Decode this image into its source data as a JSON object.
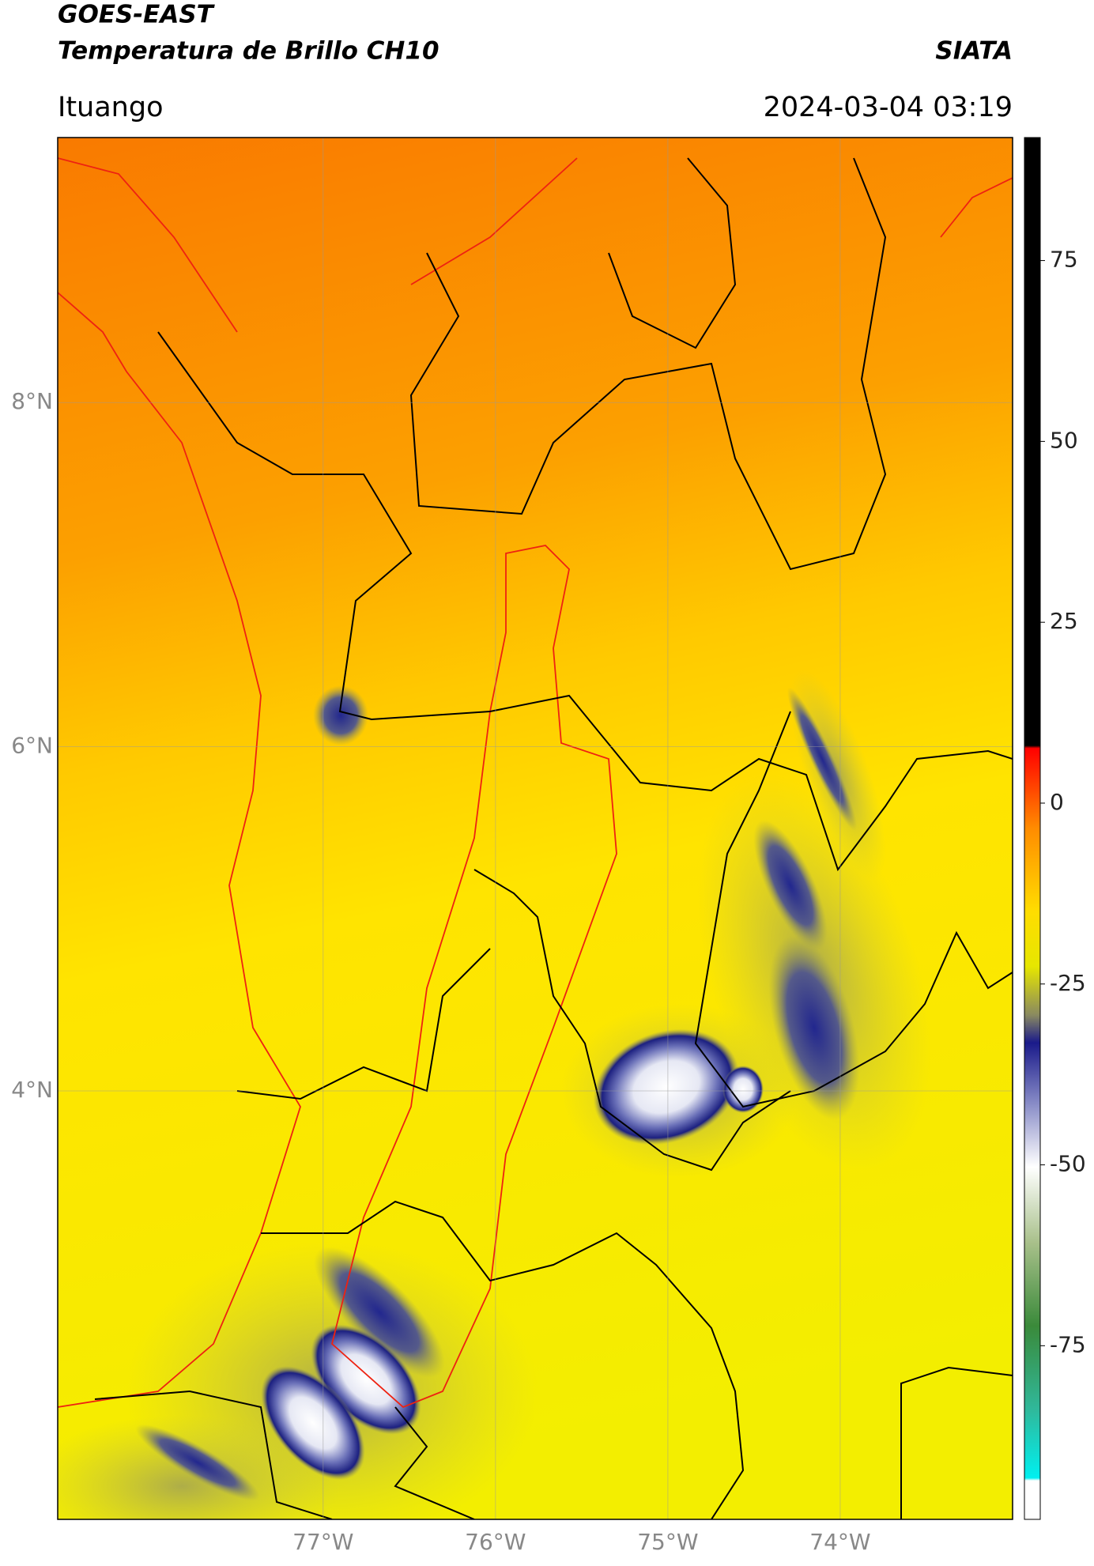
{
  "header": {
    "title": "GOES-EAST",
    "subtitle": "Temperatura de Brillo CH10",
    "source": "SIATA",
    "location": "Ituango",
    "datetime": "2024-03-04 03:19"
  },
  "map": {
    "xlim": [
      -78.54,
      -73.0
    ],
    "ylim": [
      1.51,
      9.54
    ],
    "xticks": [
      {
        "value": -77,
        "label": "77°W"
      },
      {
        "value": -76,
        "label": "76°W"
      },
      {
        "value": -75,
        "label": "75°W"
      },
      {
        "value": -74,
        "label": "74°W"
      }
    ],
    "yticks": [
      {
        "value": 4,
        "label": "4°N"
      },
      {
        "value": 6,
        "label": "6°N"
      },
      {
        "value": 8,
        "label": "8°N"
      }
    ],
    "grid": true
  },
  "colorbar": {
    "lim": [
      -99,
      92
    ],
    "ticks": [
      -75,
      -50,
      -25,
      0,
      25,
      50,
      75
    ]
  }
}
